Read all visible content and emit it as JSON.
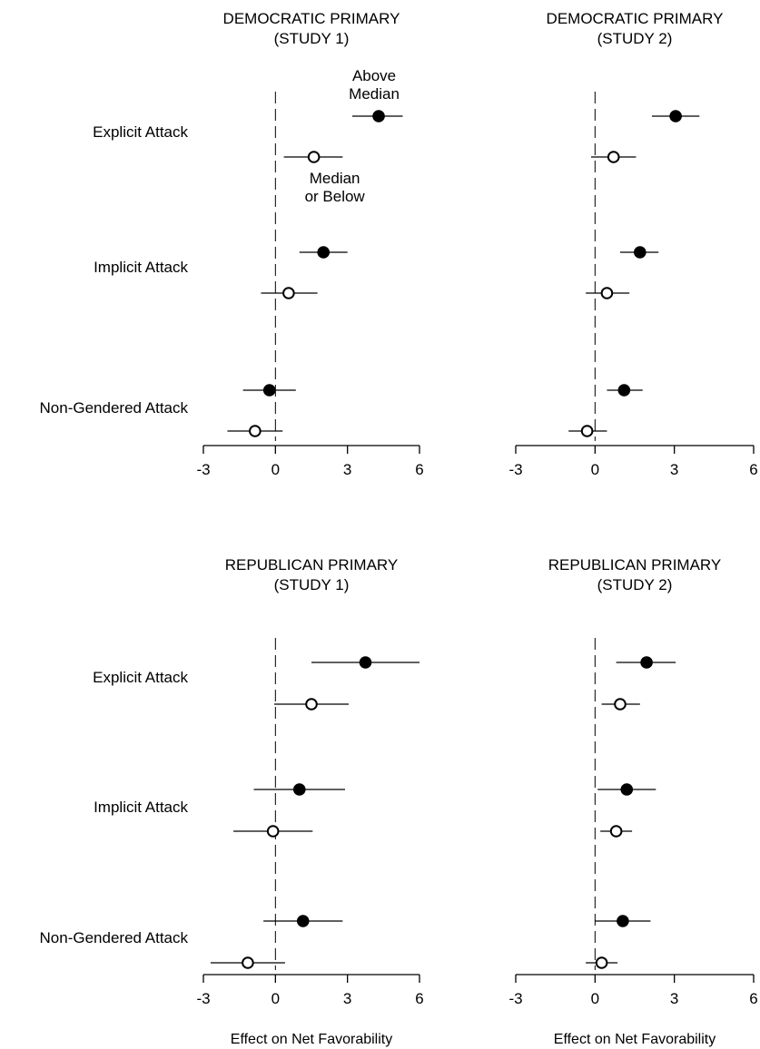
{
  "shared": {
    "categories": [
      "Explicit Attack",
      "Implicit Attack",
      "Non-Gendered Attack"
    ],
    "xlabel": "Effect on Net Favorability",
    "xticks": [
      "-3",
      "0",
      "3",
      "6"
    ],
    "annotations": {
      "above_line1": "Above",
      "above_line2": "Median",
      "below_line1": "Median",
      "below_line2": "or Below"
    }
  },
  "chart_data": [
    {
      "type": "scatter",
      "title_line1": "DEMOCRATIC PRIMARY",
      "title_line2": "(STUDY 1)",
      "xlim": [
        -3,
        6
      ],
      "reference_line": 0,
      "series": [
        {
          "name": "Above Median",
          "marker": "filled",
          "points": [
            {
              "category": "Explicit Attack",
              "estimate": 4.3,
              "ci": [
                3.2,
                5.3
              ]
            },
            {
              "category": "Implicit Attack",
              "estimate": 2.0,
              "ci": [
                1.0,
                3.0
              ]
            },
            {
              "category": "Non-Gendered Attack",
              "estimate": -0.25,
              "ci": [
                -1.35,
                0.85
              ]
            }
          ]
        },
        {
          "name": "Median or Below",
          "marker": "open",
          "points": [
            {
              "category": "Explicit Attack",
              "estimate": 1.6,
              "ci": [
                0.35,
                2.8
              ]
            },
            {
              "category": "Implicit Attack",
              "estimate": 0.55,
              "ci": [
                -0.6,
                1.75
              ]
            },
            {
              "category": "Non-Gendered Attack",
              "estimate": -0.85,
              "ci": [
                -2.0,
                0.3
              ]
            }
          ]
        }
      ]
    },
    {
      "type": "scatter",
      "title_line1": "DEMOCRATIC PRIMARY",
      "title_line2": "(STUDY 2)",
      "xlim": [
        -3,
        6
      ],
      "reference_line": 0,
      "series": [
        {
          "name": "Above Median",
          "marker": "filled",
          "points": [
            {
              "category": "Explicit Attack",
              "estimate": 3.05,
              "ci": [
                2.15,
                3.95
              ]
            },
            {
              "category": "Implicit Attack",
              "estimate": 1.7,
              "ci": [
                0.95,
                2.4
              ]
            },
            {
              "category": "Non-Gendered Attack",
              "estimate": 1.1,
              "ci": [
                0.45,
                1.8
              ]
            }
          ]
        },
        {
          "name": "Median or Below",
          "marker": "open",
          "points": [
            {
              "category": "Explicit Attack",
              "estimate": 0.7,
              "ci": [
                -0.15,
                1.55
              ]
            },
            {
              "category": "Implicit Attack",
              "estimate": 0.45,
              "ci": [
                -0.35,
                1.3
              ]
            },
            {
              "category": "Non-Gendered Attack",
              "estimate": -0.3,
              "ci": [
                -1.0,
                0.45
              ]
            }
          ]
        }
      ]
    },
    {
      "type": "scatter",
      "title_line1": "REPUBLICAN PRIMARY",
      "title_line2": "(STUDY 1)",
      "xlim": [
        -3,
        6
      ],
      "reference_line": 0,
      "series": [
        {
          "name": "Above Median",
          "marker": "filled",
          "points": [
            {
              "category": "Explicit Attack",
              "estimate": 3.75,
              "ci": [
                1.5,
                6.0
              ]
            },
            {
              "category": "Implicit Attack",
              "estimate": 1.0,
              "ci": [
                -0.9,
                2.9
              ]
            },
            {
              "category": "Non-Gendered Attack",
              "estimate": 1.15,
              "ci": [
                -0.5,
                2.8
              ]
            }
          ]
        },
        {
          "name": "Median or Below",
          "marker": "open",
          "points": [
            {
              "category": "Explicit Attack",
              "estimate": 1.5,
              "ci": [
                -0.05,
                3.05
              ]
            },
            {
              "category": "Implicit Attack",
              "estimate": -0.1,
              "ci": [
                -1.75,
                1.55
              ]
            },
            {
              "category": "Non-Gendered Attack",
              "estimate": -1.15,
              "ci": [
                -2.7,
                0.4
              ]
            }
          ]
        }
      ]
    },
    {
      "type": "scatter",
      "title_line1": "REPUBLICAN PRIMARY",
      "title_line2": "(STUDY 2)",
      "xlim": [
        -3,
        6
      ],
      "reference_line": 0,
      "series": [
        {
          "name": "Above Median",
          "marker": "filled",
          "points": [
            {
              "category": "Explicit Attack",
              "estimate": 1.95,
              "ci": [
                0.8,
                3.05
              ]
            },
            {
              "category": "Implicit Attack",
              "estimate": 1.2,
              "ci": [
                0.1,
                2.3
              ]
            },
            {
              "category": "Non-Gendered Attack",
              "estimate": 1.05,
              "ci": [
                0.0,
                2.1
              ]
            }
          ]
        },
        {
          "name": "Median or Below",
          "marker": "open",
          "points": [
            {
              "category": "Explicit Attack",
              "estimate": 0.95,
              "ci": [
                0.25,
                1.7
              ]
            },
            {
              "category": "Implicit Attack",
              "estimate": 0.8,
              "ci": [
                0.2,
                1.4
              ]
            },
            {
              "category": "Non-Gendered Attack",
              "estimate": 0.25,
              "ci": [
                -0.35,
                0.85
              ]
            }
          ]
        }
      ]
    }
  ]
}
